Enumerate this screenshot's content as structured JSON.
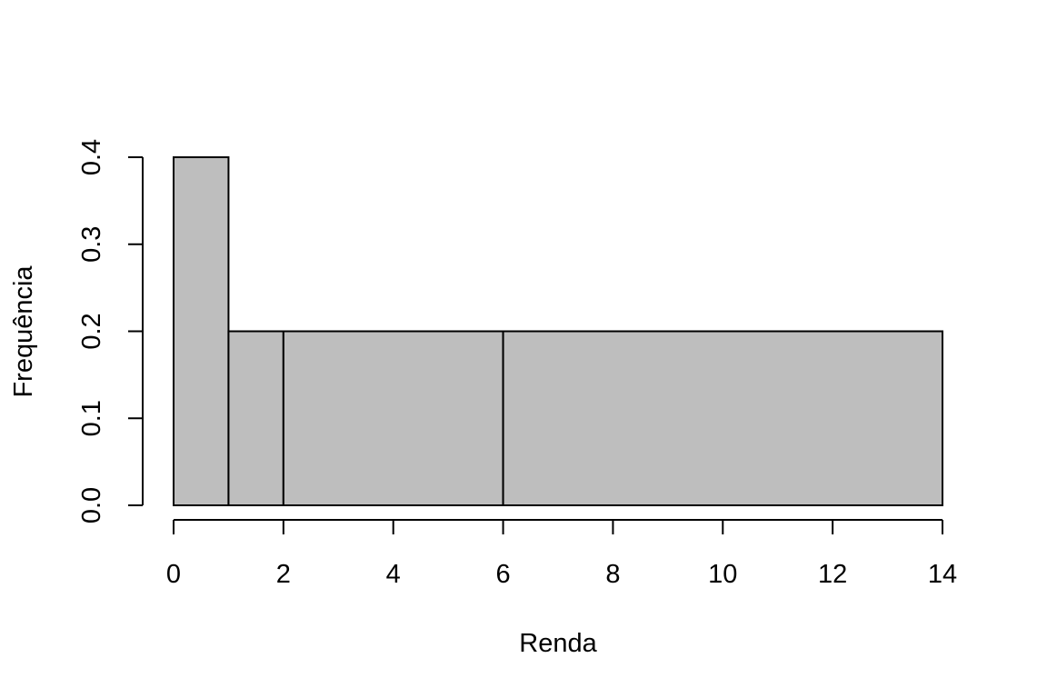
{
  "chart_data": {
    "type": "bar",
    "title": "",
    "xlabel": "Renda",
    "ylabel": "Frequência",
    "xlim": [
      0,
      14
    ],
    "ylim": [
      0,
      0.4
    ],
    "bins": [
      {
        "start": 0,
        "end": 1,
        "value": 0.4
      },
      {
        "start": 1,
        "end": 2,
        "value": 0.2
      },
      {
        "start": 2,
        "end": 6,
        "value": 0.2
      },
      {
        "start": 6,
        "end": 14,
        "value": 0.2
      }
    ],
    "x_ticks": [
      {
        "value": 0,
        "label": "0"
      },
      {
        "value": 2,
        "label": "2"
      },
      {
        "value": 4,
        "label": "4"
      },
      {
        "value": 6,
        "label": "6"
      },
      {
        "value": 8,
        "label": "8"
      },
      {
        "value": 10,
        "label": "10"
      },
      {
        "value": 12,
        "label": "12"
      },
      {
        "value": 14,
        "label": "14"
      }
    ],
    "y_ticks": [
      {
        "value": 0,
        "label": "0.0"
      },
      {
        "value": 0.1,
        "label": "0.1"
      },
      {
        "value": 0.2,
        "label": "0.2"
      },
      {
        "value": 0.3,
        "label": "0.3"
      },
      {
        "value": 0.4,
        "label": "0.4"
      }
    ],
    "grid": false,
    "legend": "none",
    "bar_color": "#bebebe",
    "edge_color": "#000000"
  }
}
